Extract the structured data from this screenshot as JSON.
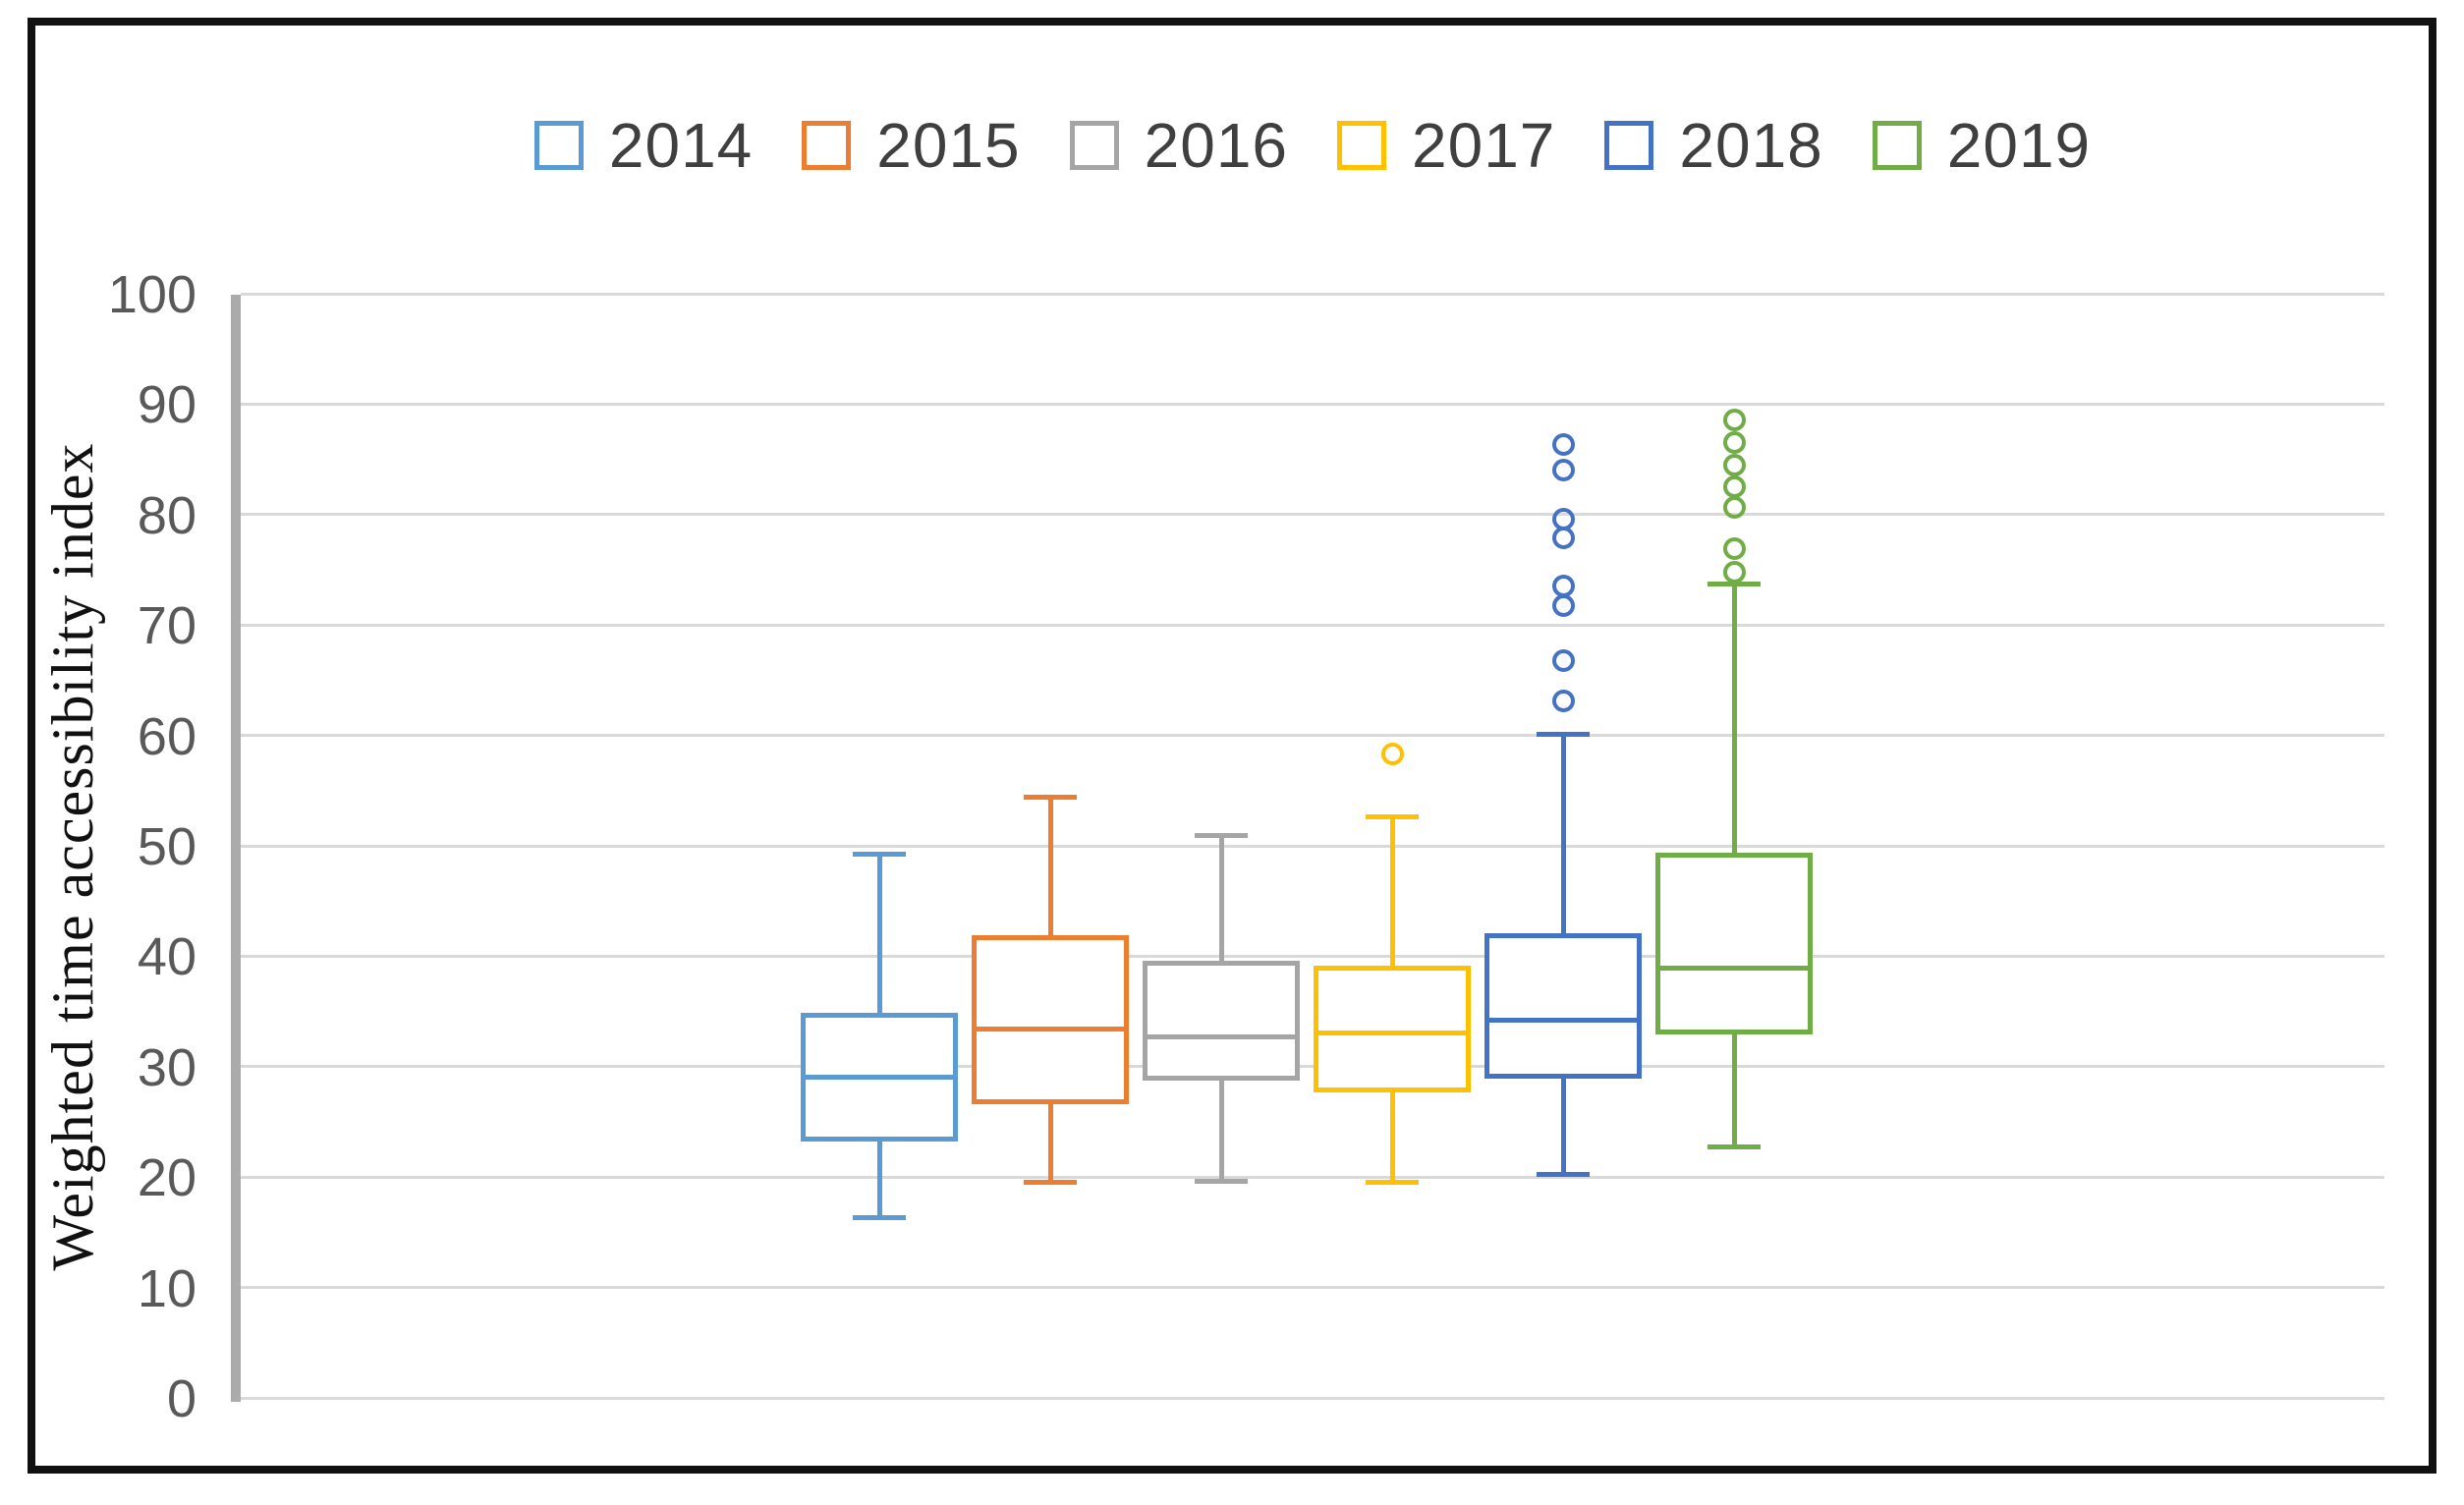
{
  "colors": {
    "background": "#ffffff",
    "border": "#111111",
    "gridline": "#d9d9d9",
    "axis_line": "#ababab",
    "tick_text": "#595959",
    "legend_text": "#3f3f3f",
    "title_text": "#111111"
  },
  "chart_data": {
    "type": "boxplot",
    "title": "",
    "xlabel": "",
    "ylabel": "Weighted time accessibility index",
    "ylim": [
      0,
      100
    ],
    "ytick_step": 10,
    "yticks": [
      0,
      10,
      20,
      30,
      40,
      50,
      60,
      70,
      80,
      90,
      100
    ],
    "grid": "horizontal",
    "legend_position": "top",
    "box_fill": "#ffffff",
    "series": [
      {
        "name": "2014",
        "color": "#5B9BD5",
        "min": 16.4,
        "q1": 23.3,
        "median": 29.1,
        "q3": 35.0,
        "max": 49.3,
        "outliers": []
      },
      {
        "name": "2015",
        "color": "#ED7D31",
        "min": 19.6,
        "q1": 26.7,
        "median": 33.5,
        "q3": 42.0,
        "max": 54.5,
        "outliers": []
      },
      {
        "name": "2016",
        "color": "#A5A5A5",
        "min": 19.7,
        "q1": 28.8,
        "median": 32.8,
        "q3": 39.7,
        "max": 51.0,
        "outliers": []
      },
      {
        "name": "2017",
        "color": "#FFC000",
        "min": 19.6,
        "q1": 27.8,
        "median": 33.1,
        "q3": 39.2,
        "max": 52.7,
        "outliers": [
          58.4
        ]
      },
      {
        "name": "2018",
        "color": "#4472C4",
        "min": 20.3,
        "q1": 29.0,
        "median": 34.3,
        "q3": 42.2,
        "max": 60.2,
        "outliers": [
          63.2,
          66.9,
          71.8,
          73.6,
          78.0,
          79.7,
          84.1,
          86.4
        ]
      },
      {
        "name": "2019",
        "color": "#70AD47",
        "min": 22.8,
        "q1": 33.0,
        "median": 39.0,
        "q3": 49.5,
        "max": 73.8,
        "outliers": [
          74.9,
          77.0,
          80.7,
          82.6,
          84.6,
          86.6,
          88.7
        ]
      }
    ]
  }
}
